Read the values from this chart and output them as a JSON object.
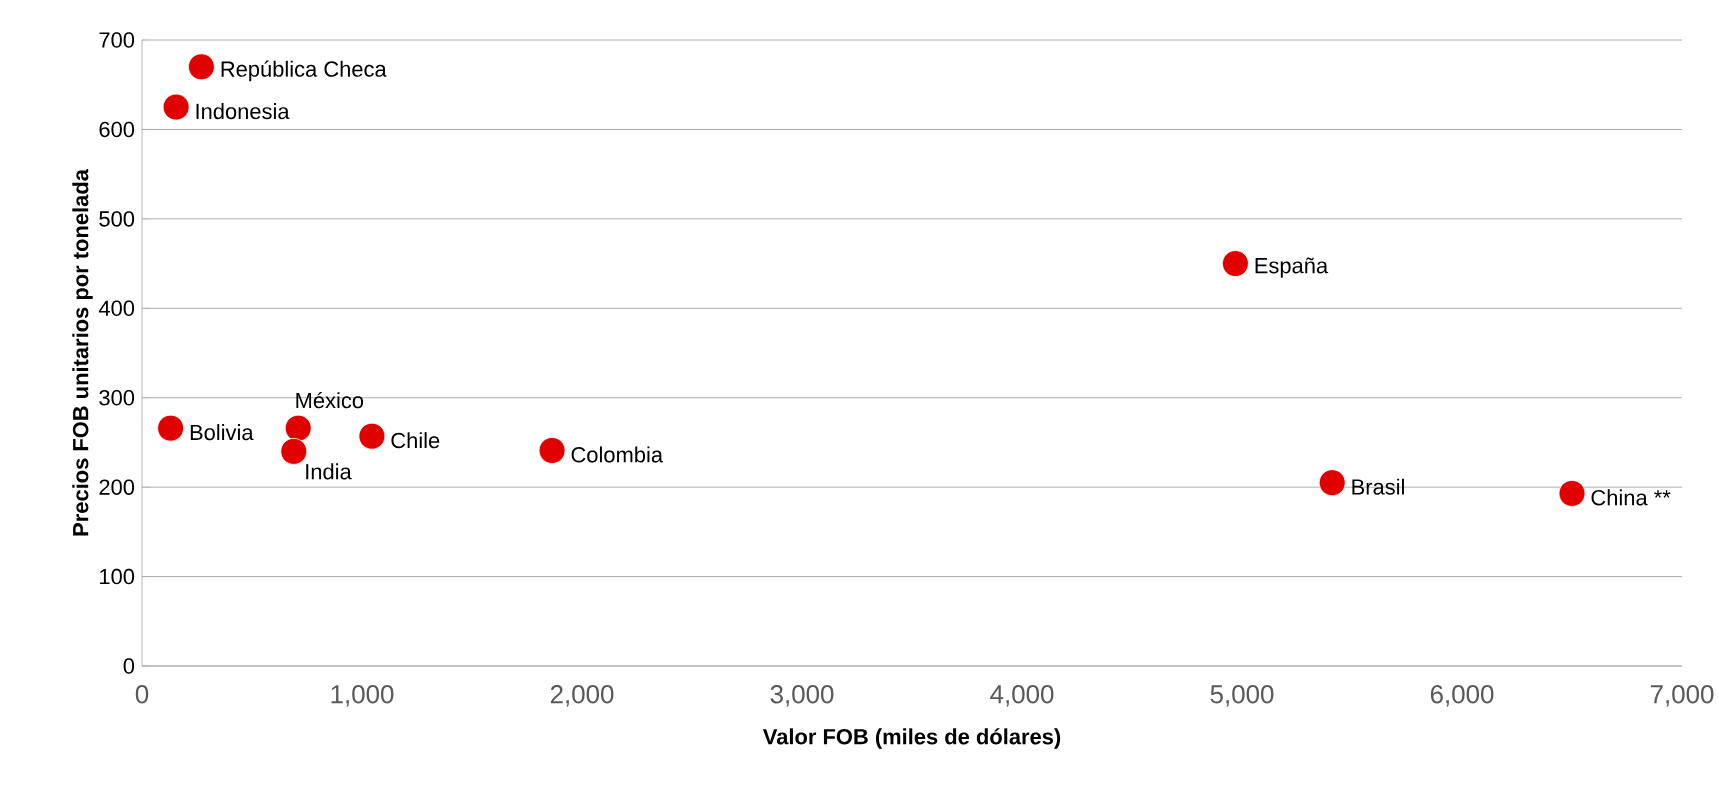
{
  "chart_data": {
    "type": "scatter",
    "xlabel": "Valor FOB (miles de dólares)",
    "ylabel": "Precios FOB unitarios por tonelada",
    "series": [
      {
        "color": "#e00000",
        "x": [
          270,
          155,
          130,
          710,
          690,
          1045,
          1864,
          4970,
          5410,
          6500
        ],
        "values": [
          670,
          625,
          266,
          266,
          240,
          257,
          241,
          450,
          205,
          193
        ]
      }
    ],
    "annotations": [
      {
        "text": "República Checa",
        "x": 270,
        "y": 670
      },
      {
        "text": "Indonesia",
        "x": 155,
        "y": 625
      },
      {
        "text": "Bolivia",
        "x": 130,
        "y": 266
      },
      {
        "text": "México",
        "x": 710,
        "y": 266
      },
      {
        "text": "India",
        "x": 690,
        "y": 240
      },
      {
        "text": "Chile",
        "x": 1045,
        "y": 257
      },
      {
        "text": "Colombia",
        "x": 1864,
        "y": 241
      },
      {
        "text": "España",
        "x": 4970,
        "y": 450
      },
      {
        "text": "Brasil",
        "x": 5410,
        "y": 205
      },
      {
        "text": "China **",
        "x": 6500,
        "y": 193
      }
    ],
    "xlim": [
      0,
      7000
    ],
    "xticks": [
      0,
      {
        "value": 1000,
        "label": "1,000"
      },
      {
        "value": 2000,
        "label": "2,000"
      },
      {
        "value": 3000,
        "label": "3,000"
      },
      {
        "value": 4000,
        "label": "4,000"
      },
      {
        "value": 5000,
        "label": "5,000"
      },
      {
        "value": 6000,
        "label": "6,000"
      },
      {
        "value": 7000,
        "label": "7,000"
      }
    ],
    "ylim": [
      0,
      700
    ],
    "yticks": [
      0,
      100,
      200,
      300,
      400,
      500,
      600,
      700
    ],
    "grid": "y",
    "marker": "circle",
    "legend": false
  }
}
